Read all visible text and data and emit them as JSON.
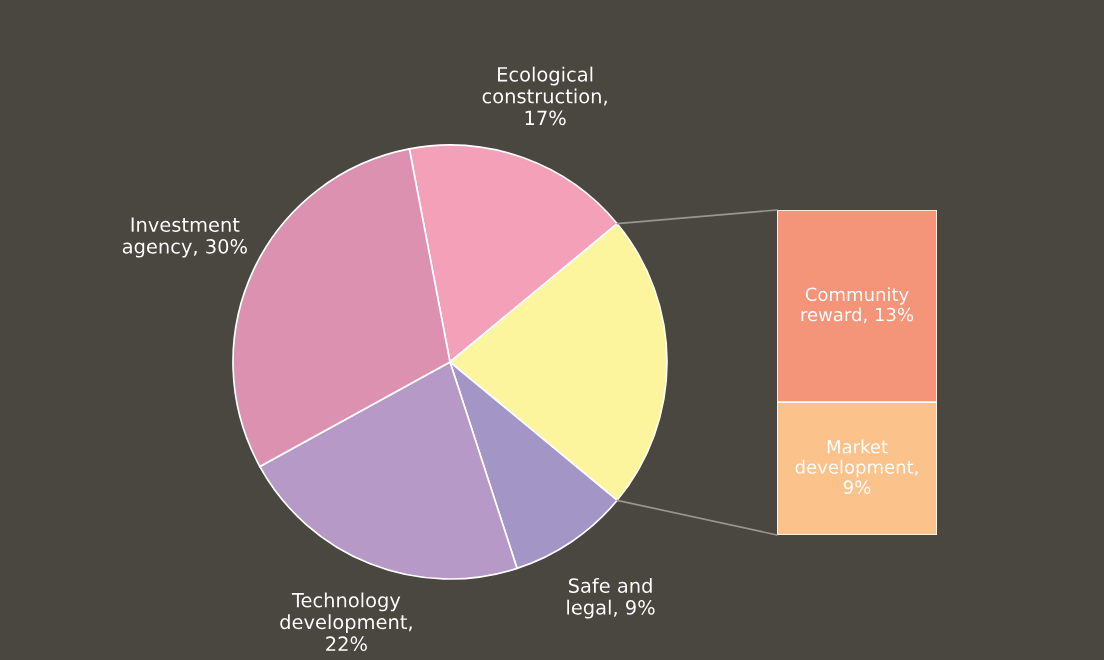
{
  "chart_data": [
    {
      "type": "pie",
      "categories": [
        "Ecological construction, 17%",
        null,
        "Safe and legal, 9%",
        "Technology development, 22%",
        "Investment agency, 30%"
      ],
      "values": [
        17,
        22,
        9,
        22,
        30
      ],
      "colors": [
        "#f4a0b9",
        "#fdf59e",
        "#a395c6",
        "#b799c8",
        "#dc91b0"
      ]
    },
    {
      "type": "bar",
      "stacked": true,
      "categories": [
        null
      ],
      "series": [
        {
          "color": "#fbc38b",
          "values": [
            9
          ],
          "value_labels": [
            "Market development, 9%"
          ]
        },
        {
          "color": "#f49478",
          "values": [
            13
          ],
          "value_labels": [
            "Community reward, 13%"
          ]
        }
      ]
    }
  ]
}
